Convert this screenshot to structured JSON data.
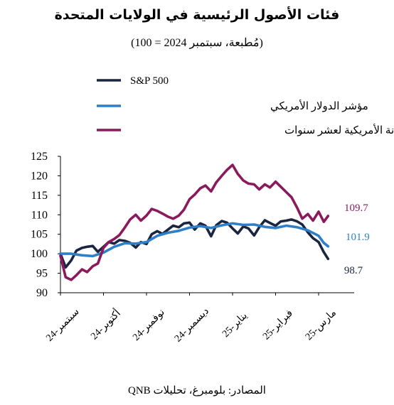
{
  "chart_data": {
    "type": "line",
    "title": "فئات الأصول الرئيسية في الولايات المتحدة",
    "subtitle": "(مُطبعة، سبتمبر 2024 = 100)",
    "source": "المصادر: بلومبرغ، تحليلات QNB",
    "xlabel": "",
    "ylabel": "",
    "ylim": [
      90,
      125
    ],
    "yticks": [
      90,
      95,
      100,
      105,
      110,
      115,
      120,
      125
    ],
    "xticks": [
      "سبتمبر-24",
      "أكتوبر-24",
      "نوفمبر-24",
      "ديسمبر-24",
      "يناير-25",
      "فبراير-25",
      "مارس-25"
    ],
    "x_range": [
      0,
      6.5
    ],
    "grid": false,
    "legend_position": "top-left",
    "series": [
      {
        "name": "S&P 500",
        "color": "#1a2540",
        "end_label": "98.7",
        "x": [
          0.0,
          0.12,
          0.25,
          0.37,
          0.5,
          0.62,
          0.75,
          0.87,
          1.0,
          1.12,
          1.25,
          1.37,
          1.5,
          1.62,
          1.75,
          1.87,
          2.0,
          2.12,
          2.25,
          2.37,
          2.5,
          2.62,
          2.75,
          2.87,
          3.0,
          3.12,
          3.25,
          3.37,
          3.5,
          3.62,
          3.75,
          3.87,
          4.0,
          4.12,
          4.25,
          4.37,
          4.5,
          4.62,
          4.75,
          4.87,
          5.0,
          5.12,
          5.25,
          5.37,
          5.5,
          5.62,
          5.75,
          5.87,
          6.0,
          6.12,
          6.22
        ],
        "values": [
          100.0,
          96.5,
          98.3,
          100.8,
          101.5,
          101.8,
          102.0,
          100.5,
          101.8,
          103.0,
          102.6,
          103.5,
          103.3,
          102.8,
          101.6,
          103.0,
          102.5,
          105.0,
          105.8,
          105.1,
          106.2,
          107.2,
          106.8,
          107.8,
          108.0,
          106.2,
          107.8,
          107.2,
          104.5,
          107.3,
          108.4,
          108.0,
          106.5,
          105.2,
          107.0,
          106.5,
          104.7,
          106.8,
          108.6,
          107.9,
          107.2,
          108.3,
          108.5,
          108.8,
          108.3,
          107.5,
          105.5,
          104.0,
          103.0,
          100.4,
          98.7
        ]
      },
      {
        "name": "مؤشر الدولار الأمريكي",
        "color": "#2e7fc8",
        "end_label": "101.9",
        "x": [
          0.0,
          0.25,
          0.5,
          0.75,
          1.0,
          1.25,
          1.5,
          1.75,
          2.0,
          2.25,
          2.5,
          2.75,
          3.0,
          3.25,
          3.5,
          3.75,
          4.0,
          4.25,
          4.5,
          4.75,
          5.0,
          5.25,
          5.5,
          5.75,
          6.0,
          6.12,
          6.22
        ],
        "values": [
          100.0,
          100.0,
          99.6,
          99.4,
          100.3,
          101.8,
          102.7,
          102.6,
          103.0,
          104.6,
          105.4,
          105.9,
          106.7,
          107.1,
          106.6,
          107.3,
          107.8,
          107.4,
          107.5,
          106.9,
          106.6,
          107.2,
          106.8,
          106.0,
          104.6,
          102.8,
          101.9
        ]
      },
      {
        "name": "سندات الخزانة الأمريكية لعشر سنوات",
        "color": "#8b1a5c",
        "end_label": "109.7",
        "x": [
          0.0,
          0.12,
          0.25,
          0.37,
          0.5,
          0.62,
          0.75,
          0.87,
          1.0,
          1.12,
          1.25,
          1.37,
          1.5,
          1.62,
          1.75,
          1.87,
          2.0,
          2.12,
          2.25,
          2.37,
          2.5,
          2.62,
          2.75,
          2.87,
          3.0,
          3.12,
          3.25,
          3.37,
          3.5,
          3.62,
          3.75,
          3.87,
          4.0,
          4.12,
          4.25,
          4.37,
          4.5,
          4.62,
          4.75,
          4.87,
          5.0,
          5.12,
          5.25,
          5.37,
          5.5,
          5.62,
          5.75,
          5.87,
          6.0,
          6.12,
          6.22
        ],
        "values": [
          99.5,
          94.0,
          93.3,
          94.5,
          96.0,
          95.3,
          96.8,
          97.5,
          101.5,
          103.0,
          103.8,
          104.8,
          106.8,
          108.8,
          110.0,
          108.5,
          109.8,
          111.5,
          111.0,
          110.3,
          109.5,
          109.0,
          109.8,
          111.3,
          114.0,
          115.2,
          116.8,
          117.5,
          116.0,
          118.3,
          120.0,
          121.5,
          122.8,
          120.5,
          118.8,
          118.0,
          117.8,
          116.5,
          117.8,
          117.0,
          118.5,
          117.2,
          115.8,
          114.5,
          111.8,
          109.0,
          110.2,
          108.5,
          110.8,
          108.2,
          109.7
        ]
      }
    ]
  }
}
